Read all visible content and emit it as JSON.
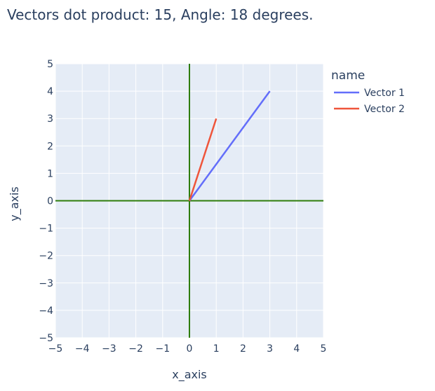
{
  "chart_data": {
    "type": "line",
    "title": "Vectors dot product: 15, Angle: 18 degrees.",
    "xlabel": "x_axis",
    "ylabel": "y_axis",
    "xlim": [
      -5,
      5
    ],
    "ylim": [
      -5,
      5
    ],
    "x_ticks": [
      "−5",
      "−4",
      "−3",
      "−2",
      "−1",
      "0",
      "1",
      "2",
      "3",
      "4",
      "5"
    ],
    "y_ticks": [
      "5",
      "4",
      "3",
      "2",
      "1",
      "0",
      "−1",
      "−2",
      "−3",
      "−4",
      "−5"
    ],
    "grid": true,
    "legend": {
      "title": "name",
      "placement": "right"
    },
    "series": [
      {
        "name": "Vector 1",
        "color": "#636efa",
        "x": [
          0,
          3
        ],
        "y": [
          0,
          4
        ]
      },
      {
        "name": "Vector 2",
        "color": "#ef553b",
        "x": [
          0,
          1
        ],
        "y": [
          0,
          3
        ]
      }
    ],
    "zero_line_color": "#2e7d0b",
    "plot_bg": "#e5ecf6"
  }
}
